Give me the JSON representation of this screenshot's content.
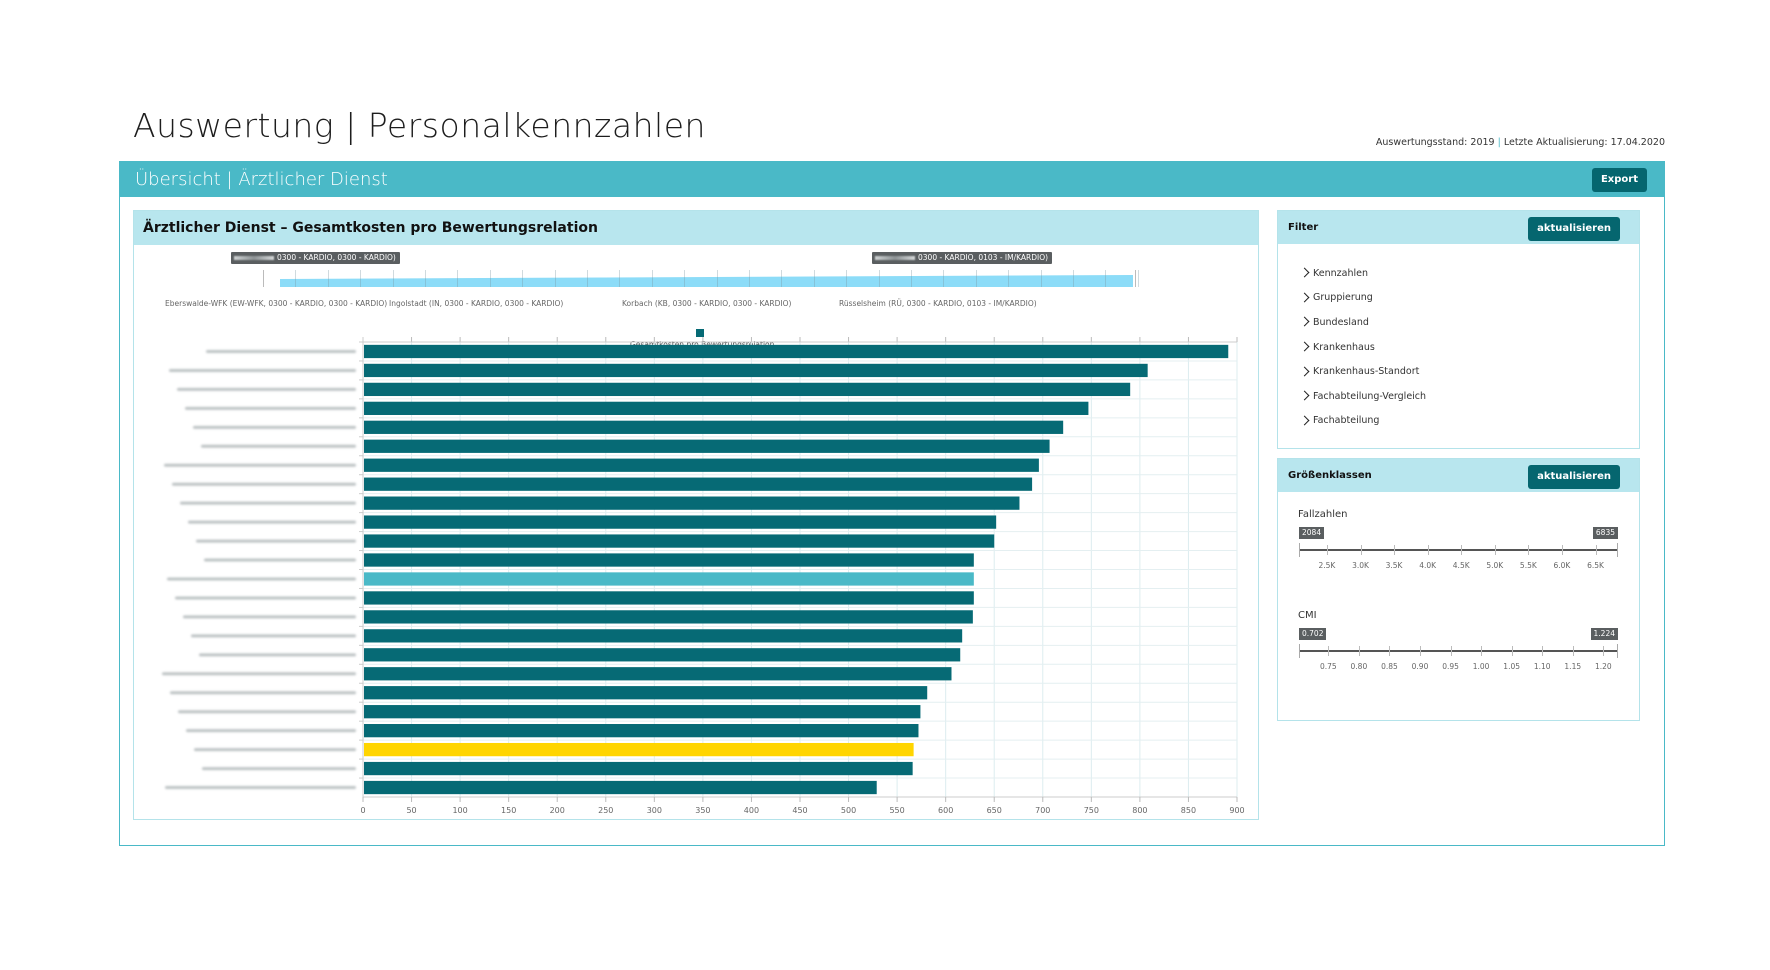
{
  "page": {
    "title": "Auswertung | Personalkennzahlen",
    "status": {
      "stand_label": "Auswertungsstand: 2019",
      "separator": "|",
      "update_label": "Letzte Aktualisierung: 17.04.2020"
    }
  },
  "overview": {
    "title": "Übersicht | Ärztlicher Dienst",
    "export_label": "Export"
  },
  "chart_card": {
    "title": "Ärztlicher Dienst – Gesamtkosten pro Bewertungsrelation",
    "navigator": {
      "left_handle": "0300 - KARDIO, 0300 - KARDIO)",
      "right_handle": "0300 - KARDIO, 0103 - IM/KARDIO)",
      "labels": [
        "Eberswalde-WFK (EW-WFK, 0300 - KARDIO, 0300 - KARDIO)",
        "Ingolstadt (IN, 0300 - KARDIO, 0300 - KARDIO)",
        "Korbach (KB, 0300 - KARDIO, 0300 - KARDIO)",
        "Rüsselsheim (RÜ, 0300 - KARDIO, 0103 - IM/KARDIO)"
      ]
    }
  },
  "chart_data": {
    "type": "bar",
    "orientation": "horizontal",
    "title": "Ärztlicher Dienst – Gesamtkosten pro Bewertungsrelation",
    "legend": [
      {
        "name": "Gesamtkosten pro Bewertungsrelation",
        "color": "#066a75"
      }
    ],
    "legend_position": "top-center",
    "xlabel": "",
    "ylabel": "",
    "xlim": [
      0,
      900
    ],
    "xticks": [
      0,
      50,
      100,
      150,
      200,
      250,
      300,
      350,
      400,
      450,
      500,
      550,
      600,
      650,
      700,
      750,
      800,
      850,
      900
    ],
    "grid": true,
    "category_labels_redacted": true,
    "categories": [
      "[redacted 1]",
      "[redacted 2]",
      "[redacted 3]",
      "[redacted 4]",
      "[redacted 5]",
      "[redacted 6]",
      "[redacted 7]",
      "[redacted 8]",
      "[redacted 9]",
      "[redacted 10]",
      "[redacted 11]",
      "[redacted 12]",
      "[redacted 13]",
      "[redacted 14]",
      "[redacted 15]",
      "[redacted 16]",
      "[redacted 17]",
      "[redacted 18]",
      "[redacted 19]",
      "[redacted 20]",
      "[redacted 21]",
      "[redacted 22]",
      "[redacted 23]",
      "[redacted 24]"
    ],
    "values": [
      891,
      808,
      790,
      747,
      721,
      707,
      696,
      689,
      676,
      652,
      650,
      629,
      629,
      629,
      628,
      617,
      615,
      606,
      581,
      574,
      572,
      567,
      566,
      529
    ],
    "highlight": [
      {
        "index": 12,
        "color": "#4ab9c7",
        "meaning": "selected / compared"
      },
      {
        "index": 21,
        "color": "#ffd500",
        "meaning": "own facility"
      }
    ],
    "colors": {
      "default": "#066a75",
      "highlight_light": "#4ab9c7",
      "highlight_own": "#ffd500",
      "navigator": "#8cdcf8"
    }
  },
  "filter_panel": {
    "title": "Filter",
    "update_label": "aktualisieren",
    "items": [
      "Kennzahlen",
      "Gruppierung",
      "Bundesland",
      "Krankenhaus",
      "Krankenhaus-Standort",
      "Fachabteilung-Vergleich",
      "Fachabteilung"
    ]
  },
  "size_panel": {
    "title": "Größenklassen",
    "update_label": "aktualisieren",
    "fallzahlen": {
      "label": "Fallzahlen",
      "min": 2084,
      "max": 6835,
      "min_label": "2084",
      "max_label": "6835",
      "ticks": [
        2500,
        3000,
        3500,
        4000,
        4500,
        5000,
        5500,
        6000,
        6500
      ],
      "tick_labels": [
        "2.5K",
        "3.0K",
        "3.5K",
        "4.0K",
        "4.5K",
        "5.0K",
        "5.5K",
        "6.0K",
        "6.5K"
      ]
    },
    "cmi": {
      "label": "CMI",
      "min": 0.702,
      "max": 1.224,
      "min_label": "0.702",
      "max_label": "1.224",
      "ticks": [
        0.75,
        0.8,
        0.85,
        0.9,
        0.95,
        1.0,
        1.05,
        1.1,
        1.15,
        1.2
      ],
      "tick_labels": [
        "0.75",
        "0.80",
        "0.85",
        "0.90",
        "0.95",
        "1.00",
        "1.05",
        "1.10",
        "1.15",
        "1.20"
      ]
    }
  }
}
